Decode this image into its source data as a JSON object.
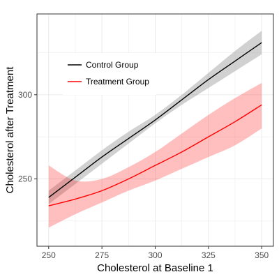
{
  "chart_data": {
    "type": "line",
    "xlabel": "Cholesterol at Baseline 1",
    "ylabel": "Cholesterol after Treatment",
    "xlim": [
      244.5,
      355.5
    ],
    "ylim": [
      210,
      348
    ],
    "x_ticks": [
      250,
      275,
      300,
      325,
      350
    ],
    "y_ticks": [
      250,
      300
    ],
    "x_tick_labels": [
      "250",
      "275",
      "300",
      "325",
      "350"
    ],
    "y_tick_labels": [
      "250",
      "300"
    ],
    "grid": true,
    "legend_position": "top-left",
    "series": [
      {
        "name": "Control Group",
        "color": "#000000",
        "band_color": "#999999",
        "x": [
          250,
          262.5,
          275,
          287.5,
          300,
          312.5,
          325,
          337.5,
          350
        ],
        "y": [
          239,
          251,
          263,
          274,
          285,
          297,
          309,
          320,
          331
        ],
        "lower": [
          235,
          247,
          259,
          271,
          283,
          294,
          304,
          314,
          324
        ],
        "upper": [
          243,
          255,
          267,
          278,
          288,
          300,
          313,
          326,
          338
        ]
      },
      {
        "name": "Treatment Group",
        "color": "#ff0000",
        "band_color": "#ff0000",
        "x": [
          250,
          262.5,
          275,
          287.5,
          300,
          312.5,
          325,
          337.5,
          350
        ],
        "y": [
          234,
          238,
          243,
          250,
          258,
          266,
          275,
          284,
          294
        ],
        "lower": [
          221,
          229,
          236,
          243,
          249,
          256,
          263,
          270,
          280
        ],
        "upper": [
          258,
          249,
          250,
          257,
          266,
          277,
          288,
          298,
          307
        ]
      }
    ]
  }
}
